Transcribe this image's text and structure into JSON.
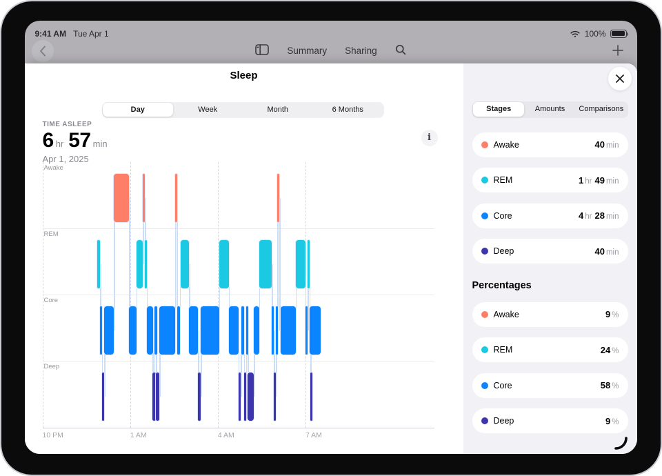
{
  "status_bar": {
    "time": "9:41 AM",
    "date": "Tue Apr 1",
    "battery_percent": "100%"
  },
  "nav_bar": {
    "summary_label": "Summary",
    "sharing_label": "Sharing"
  },
  "sheet": {
    "title": "Sleep"
  },
  "range_tabs": {
    "options": [
      "Day",
      "Week",
      "Month",
      "6 Months"
    ],
    "selected_index": 0
  },
  "summary_metric": {
    "label": "TIME ASLEEP",
    "value_parts": [
      {
        "n": "6",
        "u": "hr"
      },
      {
        "n": "57",
        "u": "min"
      }
    ],
    "date": "Apr 1, 2025",
    "info_glyph": "i"
  },
  "panel": {
    "tabs": {
      "options": [
        "Stages",
        "Amounts",
        "Comparisons"
      ],
      "selected_index": 0
    },
    "stage_durations": [
      {
        "stage": "Awake",
        "color": "#FF7E67",
        "parts": [
          {
            "n": "40",
            "u": "min"
          }
        ]
      },
      {
        "stage": "REM",
        "color": "#1BC9E2",
        "parts": [
          {
            "n": "1",
            "u": "hr"
          },
          {
            "n": "49",
            "u": "min"
          }
        ]
      },
      {
        "stage": "Core",
        "color": "#0A84FF",
        "parts": [
          {
            "n": "4",
            "u": "hr"
          },
          {
            "n": "28",
            "u": "min"
          }
        ]
      },
      {
        "stage": "Deep",
        "color": "#3C35AE",
        "parts": [
          {
            "n": "40",
            "u": "min"
          }
        ]
      }
    ],
    "percent_heading": "Percentages",
    "stage_percentages": [
      {
        "stage": "Awake",
        "color": "#FF7E67",
        "value": "9",
        "unit": "%"
      },
      {
        "stage": "REM",
        "color": "#1BC9E2",
        "value": "24",
        "unit": "%"
      },
      {
        "stage": "Core",
        "color": "#0A84FF",
        "value": "58",
        "unit": "%"
      },
      {
        "stage": "Deep",
        "color": "#3C35AE",
        "value": "9",
        "unit": "%"
      }
    ]
  },
  "chart_data": {
    "type": "sleep-stages-timeline",
    "title": "Sleep stages, Apr 1, 2025",
    "time_asleep_total": "6 hr 57 min",
    "rows": [
      "Awake",
      "REM",
      "Core",
      "Deep"
    ],
    "stage_colors": {
      "Awake": "#FF7E67",
      "REM": "#1BC9E2",
      "Core": "#0A84FF",
      "Deep": "#3C35AE"
    },
    "connector_color": "#cbddf7",
    "x_axis": {
      "start_label": "10 PM",
      "hours_span": 13.4,
      "ticks": [
        {
          "label": "10 PM",
          "hour": 0
        },
        {
          "label": "1 AM",
          "hour": 3
        },
        {
          "label": "4 AM",
          "hour": 6
        },
        {
          "label": "7 AM",
          "hour": 9
        }
      ]
    },
    "segments": [
      {
        "stage": "REM",
        "start": 1.88,
        "end": 1.97
      },
      {
        "stage": "Core",
        "start": 1.97,
        "end": 2.04
      },
      {
        "stage": "Deep",
        "start": 2.04,
        "end": 2.12
      },
      {
        "stage": "Core",
        "start": 2.12,
        "end": 2.45
      },
      {
        "stage": "Awake",
        "start": 2.45,
        "end": 2.97
      },
      {
        "stage": "Core",
        "start": 2.97,
        "end": 3.21
      },
      {
        "stage": "REM",
        "start": 3.21,
        "end": 3.44
      },
      {
        "stage": "Awake",
        "start": 3.44,
        "end": 3.51
      },
      {
        "stage": "REM",
        "start": 3.51,
        "end": 3.57
      },
      {
        "stage": "Core",
        "start": 3.57,
        "end": 3.79
      },
      {
        "stage": "Deep",
        "start": 3.77,
        "end": 3.87
      },
      {
        "stage": "Core",
        "start": 3.83,
        "end": 3.92
      },
      {
        "stage": "Deep",
        "start": 3.89,
        "end": 4.01
      },
      {
        "stage": "Core",
        "start": 4.01,
        "end": 4.53
      },
      {
        "stage": "Awake",
        "start": 4.53,
        "end": 4.6
      },
      {
        "stage": "Core",
        "start": 4.62,
        "end": 4.7
      },
      {
        "stage": "REM",
        "start": 4.72,
        "end": 5.02
      },
      {
        "stage": "Core",
        "start": 5.02,
        "end": 5.33
      },
      {
        "stage": "Deep",
        "start": 5.33,
        "end": 5.42
      },
      {
        "stage": "Core",
        "start": 5.42,
        "end": 6.04
      },
      {
        "stage": "REM",
        "start": 6.04,
        "end": 6.37
      },
      {
        "stage": "Core",
        "start": 6.39,
        "end": 6.72
      },
      {
        "stage": "Deep",
        "start": 6.7,
        "end": 6.79
      },
      {
        "stage": "Core",
        "start": 6.8,
        "end": 6.89
      },
      {
        "stage": "Deep",
        "start": 6.89,
        "end": 6.96
      },
      {
        "stage": "Core",
        "start": 6.96,
        "end": 7.03
      },
      {
        "stage": "Deep",
        "start": 7.03,
        "end": 7.24
      },
      {
        "stage": "Core",
        "start": 7.24,
        "end": 7.41
      },
      {
        "stage": "REM",
        "start": 7.41,
        "end": 7.85
      },
      {
        "stage": "Core",
        "start": 7.85,
        "end": 7.92
      },
      {
        "stage": "Deep",
        "start": 7.92,
        "end": 7.99
      },
      {
        "stage": "Core",
        "start": 7.99,
        "end": 8.04
      },
      {
        "stage": "Awake",
        "start": 8.04,
        "end": 8.11
      },
      {
        "stage": "Core",
        "start": 8.14,
        "end": 8.66
      },
      {
        "stage": "REM",
        "start": 8.66,
        "end": 8.99
      },
      {
        "stage": "Core",
        "start": 8.99,
        "end": 9.08
      },
      {
        "stage": "REM",
        "start": 9.08,
        "end": 9.15
      },
      {
        "stage": "Deep",
        "start": 9.17,
        "end": 9.24
      },
      {
        "stage": "Core",
        "start": 9.13,
        "end": 9.53
      }
    ]
  }
}
